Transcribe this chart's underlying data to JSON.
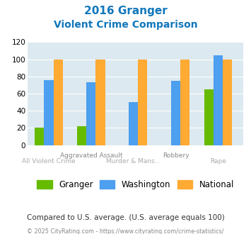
{
  "title_line1": "2016 Granger",
  "title_line2": "Violent Crime Comparison",
  "granger": [
    20,
    22,
    0,
    0,
    65
  ],
  "washington": [
    76,
    73,
    50,
    75,
    105
  ],
  "national": [
    100,
    100,
    100,
    100,
    100
  ],
  "granger_color": "#66bb00",
  "washington_color": "#4d9fef",
  "national_color": "#ffaa33",
  "title_color": "#1177bb",
  "ylim": [
    0,
    120
  ],
  "yticks": [
    0,
    20,
    40,
    60,
    80,
    100,
    120
  ],
  "bg_color": "#dce9f0",
  "footer_text": "Compared to U.S. average. (U.S. average equals 100)",
  "copyright_text": "© 2025 CityRating.com - https://www.cityrating.com/crime-statistics/",
  "legend_labels": [
    "Granger",
    "Washington",
    "National"
  ],
  "bar_width": 0.22,
  "top_xlabels": [
    "",
    "Aggravated Assault",
    "",
    "Robbery",
    ""
  ],
  "bot_xlabels": [
    "All Violent Crime",
    "",
    "Murder & Mans...",
    "",
    "Rape"
  ]
}
